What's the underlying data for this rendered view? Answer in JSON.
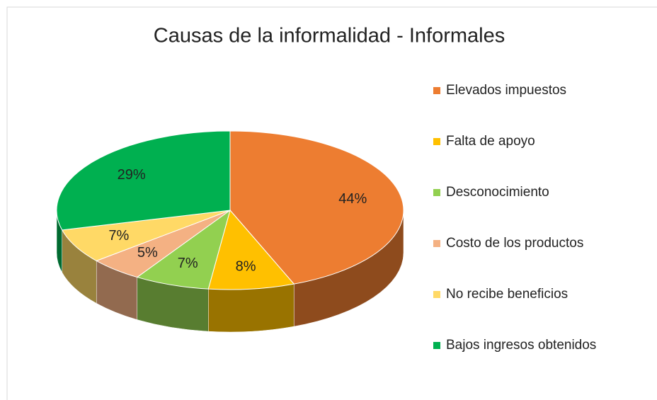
{
  "chart_data": {
    "type": "pie",
    "title": "Causas de la informalidad - Informales",
    "categories": [
      "Elevados impuestos",
      "Falta de apoyo",
      "Desconocimiento",
      "Costo de los productos",
      "No recibe beneficios",
      "Bajos ingresos obtenidos"
    ],
    "values": [
      44,
      8,
      7,
      5,
      7,
      29
    ],
    "value_labels": [
      "44%",
      "8%",
      "7%",
      "5%",
      "7%",
      "29%"
    ],
    "colors": [
      "#ED7D31",
      "#FFC000",
      "#92D050",
      "#F4B183",
      "#FFD966",
      "#00B050"
    ],
    "legend": "right"
  }
}
